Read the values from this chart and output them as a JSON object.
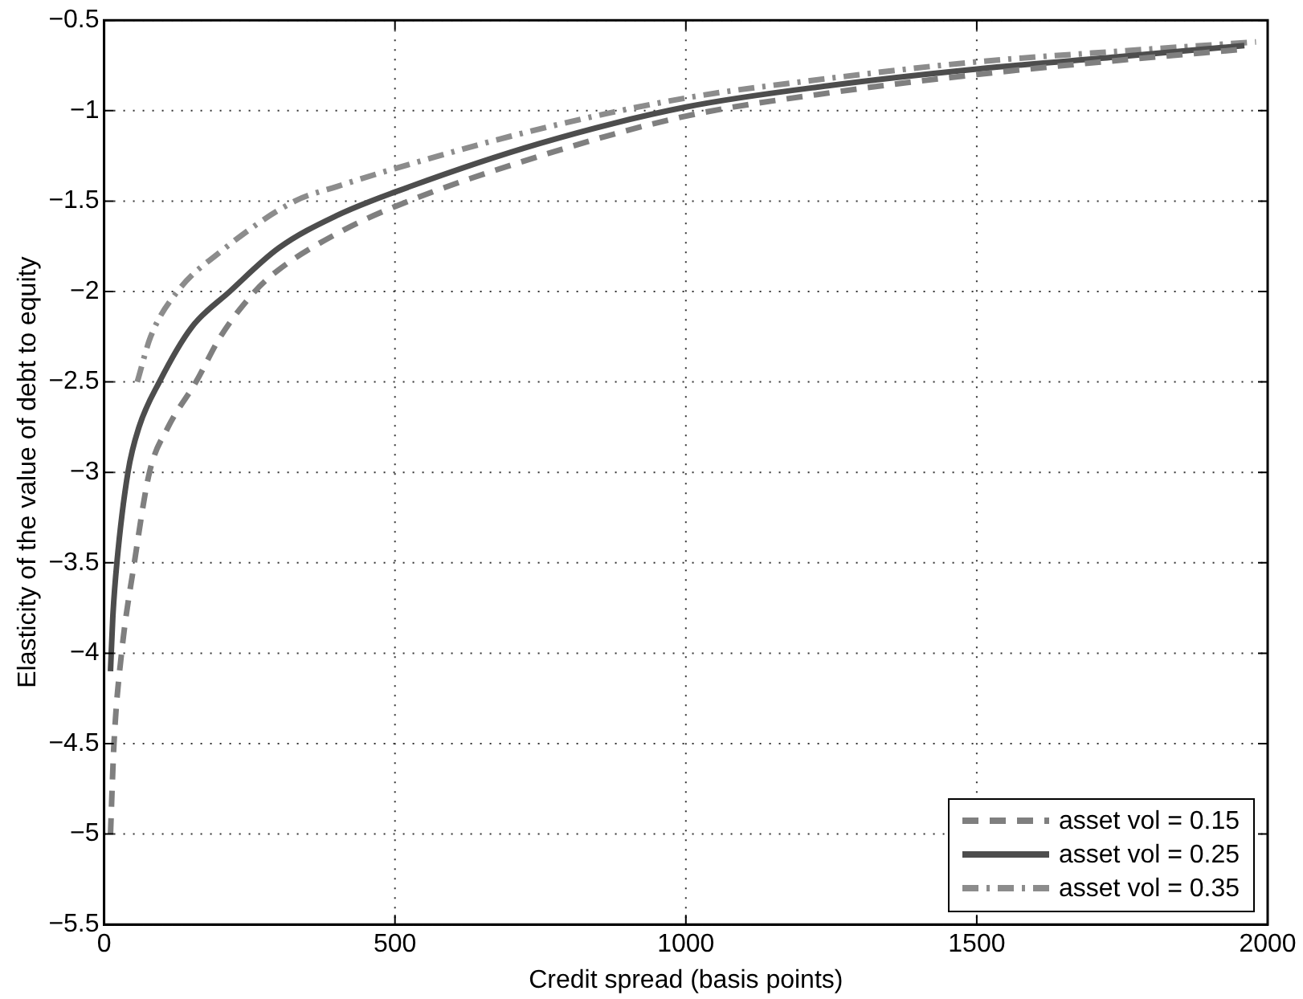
{
  "chart_data": {
    "type": "line",
    "xlabel": "Credit spread (basis points)",
    "ylabel": "Elasticity of the value of debt to equity",
    "xlim": [
      0,
      2000
    ],
    "xticks": [
      0,
      500,
      1000,
      1500,
      2000
    ],
    "ylim": [
      -5.5,
      -0.5
    ],
    "yticks": [
      -5.5,
      -5,
      -4.5,
      -4,
      -3.5,
      -3,
      -2.5,
      -2,
      -1.5,
      -1,
      -0.5
    ],
    "grid": true,
    "legend": "bottom right",
    "marker": "none",
    "series": [
      {
        "name": "asset vol = 0.15",
        "color": "#7f7f7f",
        "line_style": "dashed",
        "x": [
          11,
          17,
          30,
          52,
          78,
          110,
          158,
          200,
          259,
          300,
          400,
          500,
          750,
          1000,
          1250,
          1500,
          1750,
          1960
        ],
        "values": [
          -5.0,
          -4.5,
          -4.0,
          -3.5,
          -3.0,
          -2.75,
          -2.5,
          -2.25,
          -2.0,
          -1.88,
          -1.68,
          -1.53,
          -1.25,
          -1.03,
          -0.9,
          -0.8,
          -0.72,
          -0.66
        ]
      },
      {
        "name": "asset vol = 0.25",
        "color": "#4d4d4d",
        "line_style": "solid",
        "x": [
          11,
          15,
          22,
          41,
          60,
          95,
          150,
          216,
          300,
          400,
          500,
          750,
          1000,
          1250,
          1500,
          1750,
          1960
        ],
        "values": [
          -4.1,
          -3.8,
          -3.5,
          -3.0,
          -2.75,
          -2.5,
          -2.2,
          -2.0,
          -1.76,
          -1.58,
          -1.45,
          -1.18,
          -0.98,
          -0.86,
          -0.77,
          -0.7,
          -0.64
        ]
      },
      {
        "name": "asset vol = 0.35",
        "color": "#8c8c8c",
        "line_style": "dashdot",
        "x": [
          57,
          80,
          126,
          200,
          328,
          400,
          500,
          750,
          1000,
          1250,
          1500,
          1750,
          1980
        ],
        "values": [
          -2.5,
          -2.25,
          -2.0,
          -1.78,
          -1.5,
          -1.42,
          -1.32,
          -1.1,
          -0.93,
          -0.82,
          -0.73,
          -0.67,
          -0.62
        ]
      }
    ]
  }
}
